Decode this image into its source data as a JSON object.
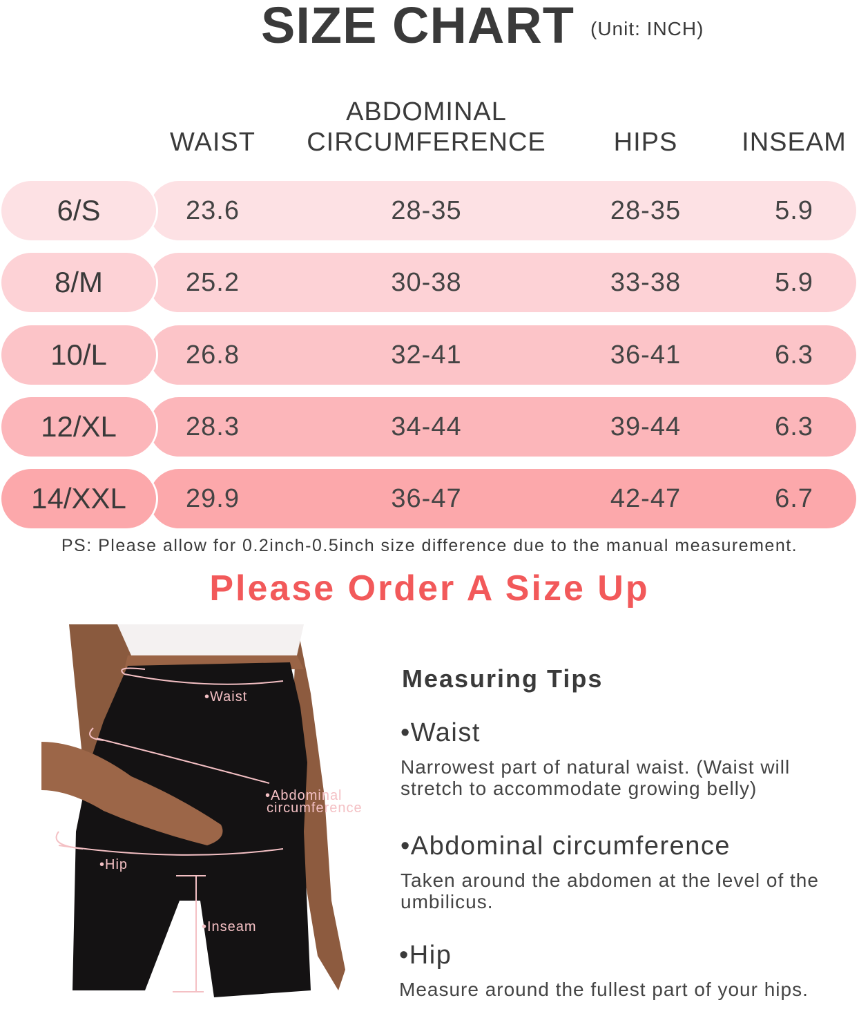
{
  "title": "SIZE CHART",
  "unit": "(Unit: INCH)",
  "columns": [
    "WAIST",
    "ABDOMINAL CIRCUMFERENCE",
    "HIPS",
    "INSEAM"
  ],
  "column_lines": {
    "abdominal_1": "ABDOMINAL",
    "abdominal_2": "CIRCUMFERENCE"
  },
  "rows": [
    {
      "size": "6/S",
      "waist": "23.6",
      "abdominal": "28-35",
      "hips": "28-35",
      "inseam": "5.9",
      "color": "#fde1e4"
    },
    {
      "size": "8/M",
      "waist": "25.2",
      "abdominal": "30-38",
      "hips": "33-38",
      "inseam": "5.9",
      "color": "#fdd2d6"
    },
    {
      "size": "10/L",
      "waist": "26.8",
      "abdominal": "32-41",
      "hips": "36-41",
      "inseam": "6.3",
      "color": "#fcc4c8"
    },
    {
      "size": "12/XL",
      "waist": "28.3",
      "abdominal": "34-44",
      "hips": "39-44",
      "inseam": "6.3",
      "color": "#fcb6ba"
    },
    {
      "size": "14/XXL",
      "waist": "29.9",
      "abdominal": "36-47",
      "hips": "42-47",
      "inseam": "6.7",
      "color": "#fca8ab"
    }
  ],
  "note": "PS: Please allow for 0.2inch-0.5inch size difference due to the manual measurement.",
  "order_tip": "Please Order A Size Up",
  "accent_color": "#f2595a",
  "photo_labels": {
    "waist": "•Waist",
    "abdominal_1": "•Abdominal",
    "abdominal_2": "circumference",
    "hip": "•Hip",
    "inseam": "•Inseam"
  },
  "tips": {
    "heading": "Measuring Tips",
    "items": [
      {
        "title": "•Waist",
        "desc": "Narrowest part of natural waist. (Waist will stretch to accommodate growing belly)"
      },
      {
        "title": "•Abdominal circumference",
        "desc": "Taken around the abdomen at the level of the umbilicus."
      },
      {
        "title": "•Hip",
        "desc": "Measure around the fullest part of your hips."
      }
    ]
  }
}
